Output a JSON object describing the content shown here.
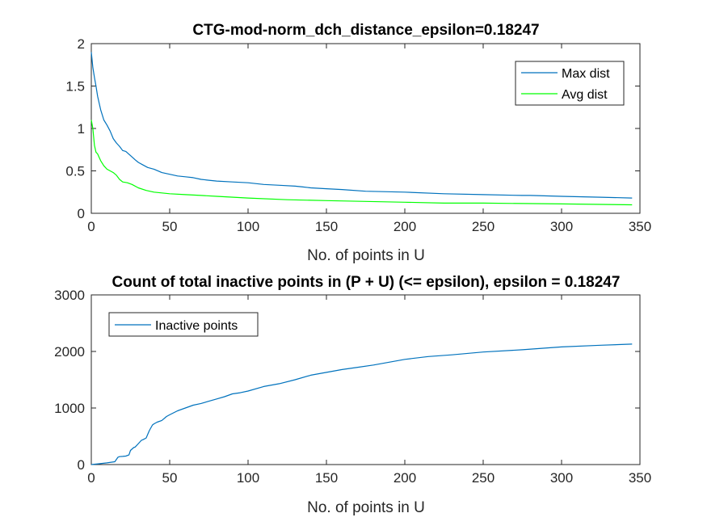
{
  "chart_data": [
    {
      "type": "line",
      "title": "CTG-mod-norm_dch_distance_epsilon=0.18247",
      "xlabel": "No. of points in U",
      "ylabel": "",
      "xlim": [
        0,
        350
      ],
      "ylim": [
        0,
        2
      ],
      "xticks": [
        0,
        50,
        100,
        150,
        200,
        250,
        300,
        350
      ],
      "xtick_labels": [
        "0",
        "50",
        "100",
        "150",
        "200",
        "250",
        "300",
        "350"
      ],
      "yticks": [
        0,
        0.5,
        1,
        1.5,
        2
      ],
      "ytick_labels": [
        "0",
        "0.5",
        "1",
        "1.5",
        "2"
      ],
      "legend": "top-right",
      "series": [
        {
          "name": "Max dist",
          "color": "#0072BD",
          "x": [
            0,
            1,
            2,
            3,
            4,
            5,
            6,
            8,
            10,
            12,
            14,
            16,
            18,
            20,
            22,
            25,
            28,
            30,
            33,
            36,
            40,
            45,
            50,
            55,
            60,
            65,
            70,
            75,
            80,
            90,
            100,
            110,
            120,
            130,
            135,
            140,
            150,
            160,
            175,
            200,
            225,
            250,
            275,
            280,
            300,
            325,
            345
          ],
          "values": [
            1.9,
            1.72,
            1.6,
            1.5,
            1.38,
            1.3,
            1.22,
            1.1,
            1.04,
            0.97,
            0.88,
            0.83,
            0.79,
            0.74,
            0.73,
            0.68,
            0.63,
            0.6,
            0.57,
            0.54,
            0.52,
            0.48,
            0.46,
            0.44,
            0.43,
            0.42,
            0.4,
            0.39,
            0.38,
            0.37,
            0.36,
            0.34,
            0.33,
            0.32,
            0.31,
            0.3,
            0.29,
            0.28,
            0.26,
            0.25,
            0.23,
            0.22,
            0.21,
            0.21,
            0.2,
            0.19,
            0.18
          ]
        },
        {
          "name": "Avg dist",
          "color": "#00FF00",
          "x": [
            0,
            1,
            2,
            3,
            4,
            5,
            6,
            8,
            10,
            12,
            14,
            16,
            18,
            20,
            23,
            26,
            30,
            35,
            40,
            45,
            50,
            60,
            70,
            80,
            100,
            125,
            150,
            175,
            200,
            225,
            250,
            300,
            345
          ],
          "values": [
            1.1,
            1.0,
            0.8,
            0.72,
            0.7,
            0.66,
            0.62,
            0.56,
            0.52,
            0.5,
            0.48,
            0.45,
            0.4,
            0.37,
            0.36,
            0.34,
            0.3,
            0.27,
            0.25,
            0.24,
            0.23,
            0.22,
            0.21,
            0.2,
            0.18,
            0.16,
            0.15,
            0.14,
            0.13,
            0.12,
            0.12,
            0.11,
            0.1
          ]
        }
      ]
    },
    {
      "type": "line",
      "title": "Count of total inactive points in (P + U) (<= epsilon), epsilon = 0.18247",
      "xlabel": "No. of points in U",
      "ylabel": "",
      "xlim": [
        0,
        350
      ],
      "ylim": [
        0,
        3000
      ],
      "xticks": [
        0,
        50,
        100,
        150,
        200,
        250,
        300,
        350
      ],
      "xtick_labels": [
        "0",
        "50",
        "100",
        "150",
        "200",
        "250",
        "300",
        "350"
      ],
      "yticks": [
        0,
        1000,
        2000,
        3000
      ],
      "ytick_labels": [
        "0",
        "1000",
        "2000",
        "3000"
      ],
      "legend": "top-left",
      "series": [
        {
          "name": "Inactive points",
          "color": "#0072BD",
          "x": [
            0,
            5,
            10,
            15,
            17,
            18,
            20,
            22,
            24,
            25,
            27,
            28,
            30,
            32,
            33,
            35,
            37,
            39,
            40,
            42,
            45,
            48,
            50,
            55,
            60,
            65,
            70,
            75,
            80,
            85,
            90,
            95,
            100,
            110,
            120,
            130,
            140,
            150,
            160,
            170,
            180,
            190,
            200,
            215,
            230,
            250,
            275,
            300,
            325,
            345
          ],
          "values": [
            0,
            15,
            30,
            50,
            130,
            140,
            145,
            150,
            170,
            250,
            300,
            310,
            370,
            430,
            440,
            470,
            600,
            700,
            720,
            750,
            780,
            850,
            880,
            950,
            1000,
            1050,
            1080,
            1120,
            1160,
            1200,
            1250,
            1270,
            1300,
            1380,
            1430,
            1500,
            1580,
            1630,
            1680,
            1720,
            1760,
            1810,
            1860,
            1910,
            1940,
            1990,
            2030,
            2080,
            2110,
            2130
          ]
        }
      ]
    }
  ]
}
